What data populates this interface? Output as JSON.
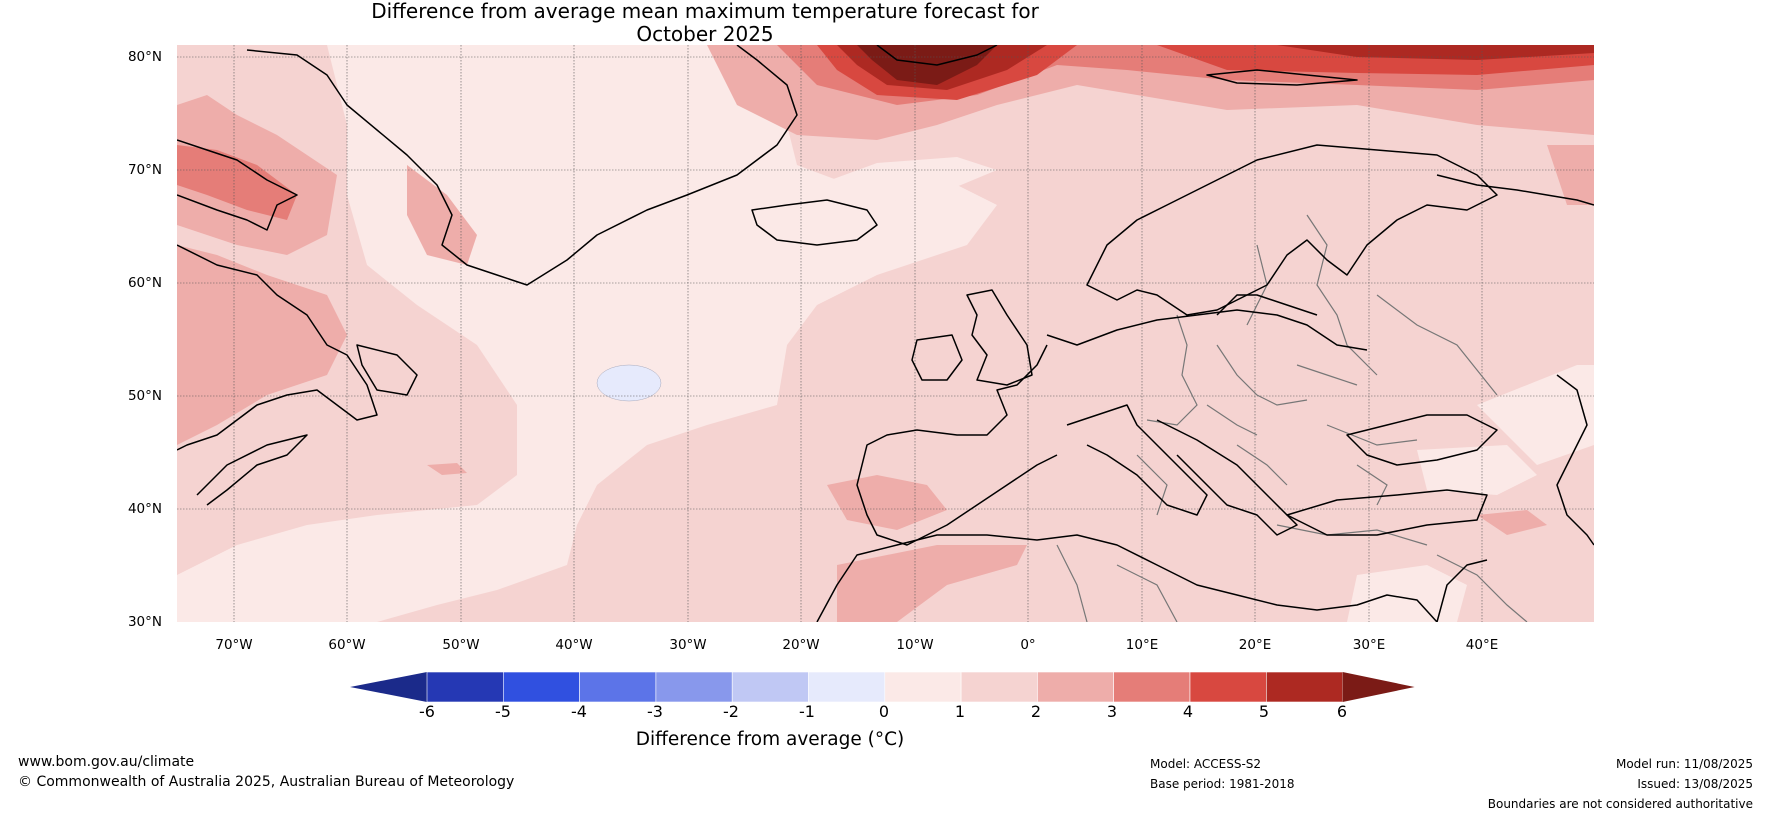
{
  "title_line1": "Difference from average mean maximum temperature forecast for",
  "title_line2": "October 2025",
  "lat_labels": [
    "80°N",
    "70°N",
    "60°N",
    "50°N",
    "40°N",
    "30°N"
  ],
  "lon_labels": [
    "70°W",
    "60°W",
    "50°W",
    "40°W",
    "30°W",
    "20°W",
    "10°W",
    "0°",
    "10°E",
    "20°E",
    "30°E",
    "40°E"
  ],
  "colorbar": {
    "label": "Difference from average (°C)",
    "ticks": [
      "-6",
      "-5",
      "-4",
      "-3",
      "-2",
      "-1",
      "0",
      "1",
      "2",
      "3",
      "4",
      "5",
      "6"
    ],
    "colors": {
      "below_min": "#1b2a8a",
      "b_m6_m5": "#2538b4",
      "b_m5_m4": "#3050e0",
      "b_m4_m3": "#5c74e8",
      "b_m3_m2": "#8898ec",
      "b_m2_m1": "#c0c8f4",
      "b_m1_0": "#e6eafc",
      "b_0_1": "#fbe9e7",
      "b_1_2": "#f5d3d1",
      "b_2_3": "#eeadaa",
      "b_3_4": "#e57d78",
      "b_4_5": "#d84840",
      "b_5_6": "#ad2922",
      "above_max": "#7b1b16"
    }
  },
  "footer": {
    "website": "www.bom.gov.au/climate",
    "copyright": "© Commonwealth of Australia 2025, Australian Bureau of Meteorology",
    "model": "Model: ACCESS-S2",
    "base_period": "Base period: 1981-2018",
    "model_run": "Model run: 11/08/2025",
    "issued": "Issued: 13/08/2025",
    "disclaimer": "Boundaries are not considered authoritative"
  }
}
